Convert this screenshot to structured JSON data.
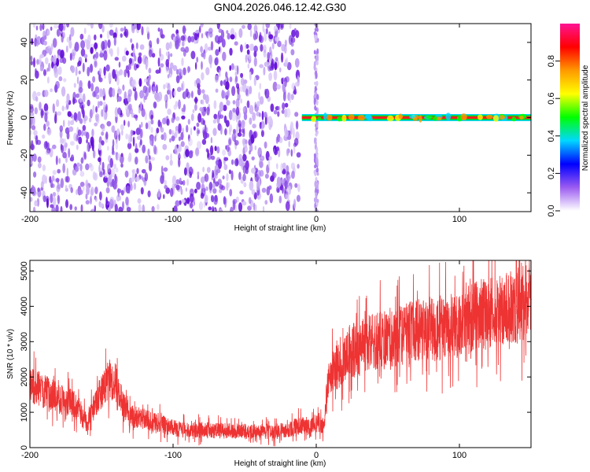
{
  "title": "GN04.2026.046.12.42.G30",
  "chart_data": [
    {
      "type": "heatmap",
      "xlabel": "Height of straight line (km)",
      "ylabel": "Frequency (Hz)",
      "xlim": [
        -200,
        150
      ],
      "ylim": [
        -50,
        50
      ],
      "x_ticks": [
        -200,
        -100,
        0,
        100
      ],
      "y_ticks": [
        -40,
        -20,
        0,
        20,
        40
      ],
      "colorbar": {
        "label": "Normalized spectral amplitude",
        "range": [
          0,
          1
        ],
        "ticks": [
          0.0,
          0.2,
          0.4,
          0.6,
          0.8
        ],
        "colors": [
          "#ffffff",
          "#9b5cf0",
          "#0000ff",
          "#00d8ff",
          "#00ff00",
          "#ffff00",
          "#ff9900",
          "#ff0000",
          "#ff1493"
        ]
      },
      "regions": [
        {
          "x_range": [
            -200,
            -12
          ],
          "description_value": "broadband noise",
          "amplitude": 0.1
        },
        {
          "x_range": [
            -10,
            150
          ],
          "frequency": 0,
          "amplitude": 0.9
        }
      ]
    },
    {
      "type": "line",
      "xlabel": "Height of straight line (km)",
      "ylabel": "SNR (10 * v/v)",
      "xlim": [
        -200,
        150
      ],
      "ylim": [
        0,
        5300
      ],
      "x_ticks": [
        -200,
        -100,
        0,
        100
      ],
      "y_ticks": [
        0,
        1000,
        2000,
        3000,
        4000,
        5000
      ],
      "series_color": "#ee3333",
      "x": [
        -200,
        -190,
        -180,
        -170,
        -160,
        -150,
        -145,
        -140,
        -135,
        -130,
        -120,
        -110,
        -100,
        -90,
        -80,
        -70,
        -60,
        -50,
        -40,
        -30,
        -20,
        -10,
        -5,
        0,
        5,
        8,
        10,
        20,
        30,
        40,
        50,
        60,
        70,
        80,
        90,
        100,
        110,
        120,
        130,
        140,
        150
      ],
      "y": [
        1800,
        1600,
        1400,
        1250,
        700,
        1600,
        1950,
        1850,
        1200,
        900,
        800,
        700,
        550,
        500,
        500,
        480,
        470,
        460,
        450,
        450,
        500,
        650,
        550,
        700,
        600,
        1800,
        2100,
        2500,
        2800,
        3000,
        3100,
        3200,
        3300,
        3350,
        3400,
        3500,
        3700,
        3800,
        3900,
        4000,
        4200
      ]
    }
  ]
}
